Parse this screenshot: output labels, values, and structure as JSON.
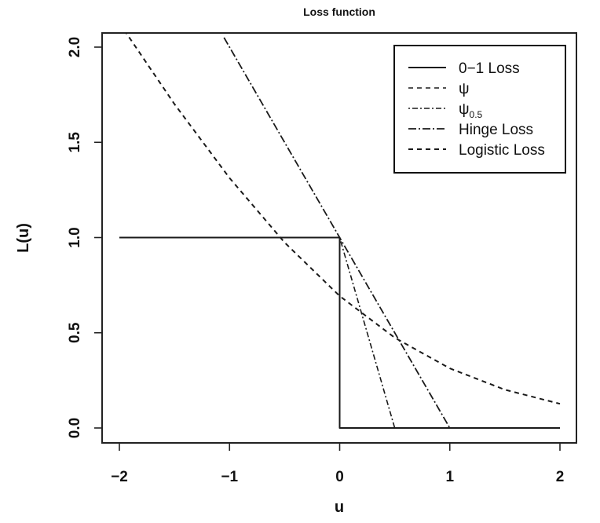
{
  "chart_data": {
    "type": "line",
    "title": "Loss function",
    "xlabel": "u",
    "ylabel": "L(u)",
    "xlim": [
      -2,
      2
    ],
    "ylim": [
      0,
      2
    ],
    "x_ticks": [
      "−2",
      "−1",
      "0",
      "1",
      "2"
    ],
    "y_ticks": [
      "0.0",
      "0.5",
      "1.0",
      "1.5",
      "2.0"
    ],
    "legend_position": "top-right",
    "series": [
      {
        "name": "0−1 Loss",
        "style": "solid",
        "x": [
          -2,
          0,
          0,
          2
        ],
        "y": [
          1,
          1,
          0,
          0
        ]
      },
      {
        "name": "ψ",
        "legend_symbol": "ψ",
        "style": "dashed",
        "x": [
          -2,
          0,
          0,
          2
        ],
        "y": [
          1,
          1,
          0,
          0
        ]
      },
      {
        "name": "ψ0.5",
        "legend_symbol": "ψ",
        "legend_subscript": "0.5",
        "style": "dotdash",
        "x": [
          0,
          0.5,
          2
        ],
        "y": [
          1,
          0,
          0
        ]
      },
      {
        "name": "Hinge Loss",
        "style": "longdash-dot",
        "x": [
          -1.05,
          1,
          2
        ],
        "y": [
          2.05,
          0,
          0
        ]
      },
      {
        "name": "Logistic Loss",
        "style": "dashed",
        "function": "log(1+exp(-u))",
        "x": [
          -2,
          -1.5,
          -1,
          -0.5,
          0,
          0.5,
          1,
          1.5,
          2
        ],
        "y": [
          2.127,
          1.701,
          1.313,
          0.974,
          0.693,
          0.474,
          0.313,
          0.201,
          0.127
        ]
      }
    ]
  }
}
